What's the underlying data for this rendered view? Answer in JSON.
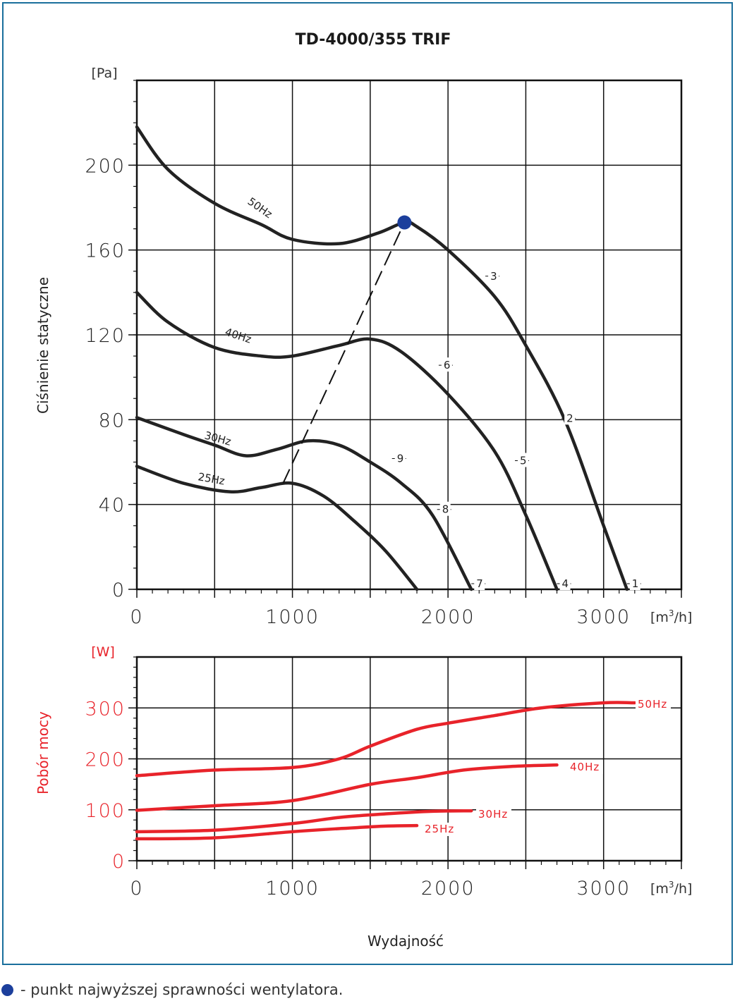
{
  "colors": {
    "frame": "#1a6f9c",
    "curve": "#222222",
    "power": "#e8232a",
    "bep": "#1c3f9c"
  },
  "legend_text": "- punkt najwyższej sprawności wentylatora.",
  "chart_data": [
    {
      "type": "line",
      "title": "TD-4000/355 TRIF",
      "ylabel": "Ciśnienie statyczne",
      "yunit": "[Pa]",
      "xunit_prefix": "[m",
      "xunit_sup": "3",
      "xunit_suffix": "/h]",
      "xlim": [
        0,
        3500
      ],
      "ylim": [
        0,
        240
      ],
      "xticks": [
        "0",
        "1000",
        "2000",
        "3000"
      ],
      "yticks": [
        "0",
        "40",
        "80",
        "120",
        "160",
        "200"
      ],
      "grid": true,
      "series": [
        {
          "name": "50Hz",
          "x": [
            0,
            200,
            500,
            800,
            1000,
            1300,
            1550,
            1720,
            1800,
            2000,
            2300,
            2500,
            2750,
            3000,
            3150
          ],
          "y": [
            218,
            198,
            182,
            172,
            165,
            163,
            168,
            173,
            171,
            160,
            138,
            115,
            80,
            30,
            0
          ]
        },
        {
          "name": "40Hz",
          "x": [
            0,
            200,
            500,
            800,
            1000,
            1300,
            1500,
            1700,
            2000,
            2300,
            2500,
            2700
          ],
          "y": [
            140,
            126,
            114,
            110,
            110,
            115,
            118,
            112,
            92,
            65,
            35,
            0
          ]
        },
        {
          "name": "30Hz",
          "x": [
            0,
            300,
            500,
            700,
            900,
            1100,
            1300,
            1500,
            1700,
            1900,
            2150
          ],
          "y": [
            81,
            73,
            68,
            63,
            66,
            70,
            68,
            60,
            50,
            35,
            0
          ]
        },
        {
          "name": "25Hz",
          "x": [
            0,
            300,
            600,
            800,
            1000,
            1200,
            1400,
            1600,
            1800
          ],
          "y": [
            58,
            50,
            46,
            48,
            50,
            44,
            32,
            18,
            0
          ]
        }
      ],
      "bep_line": {
        "x": [
          940,
          1720
        ],
        "y": [
          50,
          173
        ]
      },
      "bep_point": {
        "x": 1720,
        "y": 173
      },
      "point_labels": [
        {
          "text": "1",
          "x": 3150,
          "y": 0
        },
        {
          "text": "2",
          "x": 2730,
          "y": 78
        },
        {
          "text": "3",
          "x": 2240,
          "y": 145
        },
        {
          "text": "4",
          "x": 2700,
          "y": 0
        },
        {
          "text": "5",
          "x": 2430,
          "y": 58
        },
        {
          "text": "6",
          "x": 1940,
          "y": 103
        },
        {
          "text": "7",
          "x": 2150,
          "y": 0
        },
        {
          "text": "8",
          "x": 1930,
          "y": 35
        },
        {
          "text": "9",
          "x": 1640,
          "y": 59
        }
      ]
    },
    {
      "type": "line",
      "ylabel": "Pobór mocy",
      "yunit": "[W]",
      "xlabel": "Wydajność",
      "xunit_prefix": "[m",
      "xunit_sup": "3",
      "xunit_suffix": "/h]",
      "xlim": [
        0,
        3500
      ],
      "ylim": [
        0,
        400
      ],
      "xticks": [
        "0",
        "1000",
        "2000",
        "3000"
      ],
      "yticks": [
        "0",
        "100",
        "200",
        "300"
      ],
      "grid": true,
      "series": [
        {
          "name": "50Hz",
          "x": [
            0,
            500,
            1000,
            1300,
            1500,
            1800,
            2000,
            2300,
            2600,
            3000,
            3200
          ],
          "y": [
            167,
            178,
            183,
            200,
            225,
            258,
            270,
            285,
            300,
            310,
            310
          ]
        },
        {
          "name": "40Hz",
          "x": [
            0,
            500,
            1000,
            1500,
            1800,
            2100,
            2400,
            2700
          ],
          "y": [
            99,
            108,
            118,
            150,
            163,
            178,
            185,
            188
          ]
        },
        {
          "name": "30Hz",
          "x": [
            0,
            500,
            1000,
            1300,
            1600,
            1900,
            2150
          ],
          "y": [
            57,
            60,
            73,
            85,
            92,
            97,
            98
          ]
        },
        {
          "name": "25Hz",
          "x": [
            0,
            500,
            1000,
            1300,
            1600,
            1800
          ],
          "y": [
            43,
            45,
            57,
            63,
            68,
            69
          ]
        }
      ]
    }
  ]
}
